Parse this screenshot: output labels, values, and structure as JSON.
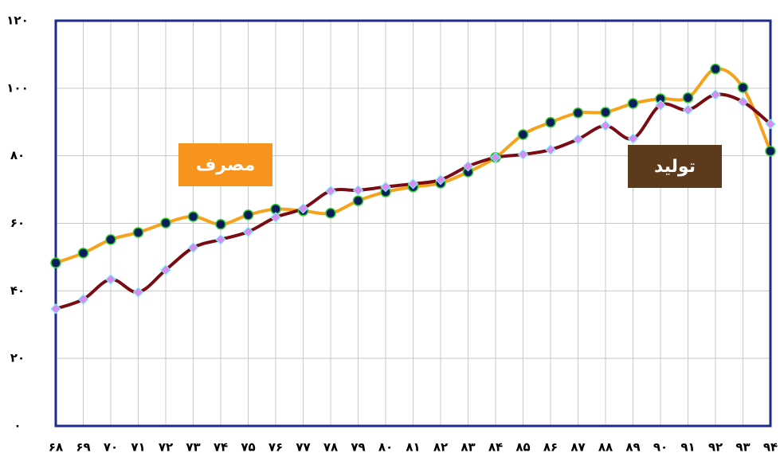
{
  "chart_data": {
    "type": "line",
    "categories": [
      "۶۸",
      "۶۹",
      "۷۰",
      "۷۱",
      "۷۲",
      "۷۳",
      "۷۴",
      "۷۵",
      "۷۶",
      "۷۷",
      "۷۸",
      "۷۹",
      "۸۰",
      "۸۱",
      "۸۲",
      "۸۳",
      "۸۴",
      "۸۵",
      "۸۶",
      "۸۷",
      "۸۸",
      "۸۹",
      "۹۰",
      "۹۱",
      "۹۲",
      "۹۳",
      "۹۴"
    ],
    "series": [
      {
        "name": "مصرف",
        "color": "#f7a21b",
        "box_color": "#f7941d",
        "marker": "circle",
        "marker_fill": "#0b1e5b",
        "marker_stroke": "#33cc33",
        "values": [
          48.3,
          51.2,
          55.2,
          57.3,
          60.1,
          62.0,
          59.7,
          62.5,
          64.2,
          63.7,
          63.0,
          66.7,
          69.3,
          70.8,
          71.9,
          75.2,
          79.5,
          86.3,
          89.9,
          92.7,
          92.9,
          95.5,
          96.9,
          97.2,
          105.7,
          100.2,
          81.4
        ]
      },
      {
        "name": "تولید",
        "color": "#7a0a14",
        "box_color": "#5c3a1c",
        "marker": "diamond",
        "marker_fill": "#d88cf0",
        "marker_stroke": "#66ffff",
        "values": [
          34.7,
          37.5,
          43.4,
          39.6,
          46.2,
          52.8,
          55.2,
          57.5,
          61.8,
          64.4,
          69.6,
          69.8,
          70.8,
          71.7,
          72.9,
          76.9,
          79.5,
          80.4,
          81.8,
          84.9,
          88.9,
          85.1,
          95.0,
          93.6,
          98.1,
          96.0,
          89.4
        ]
      }
    ],
    "ylim": [
      0,
      120
    ],
    "yticks": [
      {
        "value": 0,
        "label": "۰"
      },
      {
        "value": 20,
        "label": "۲۰"
      },
      {
        "value": 40,
        "label": "۴۰"
      },
      {
        "value": 60,
        "label": "۶۰"
      },
      {
        "value": 80,
        "label": "۸۰"
      },
      {
        "value": 100,
        "label": "۱۰۰"
      },
      {
        "value": 120,
        "label": "۱۲۰"
      }
    ],
    "grid": true
  }
}
